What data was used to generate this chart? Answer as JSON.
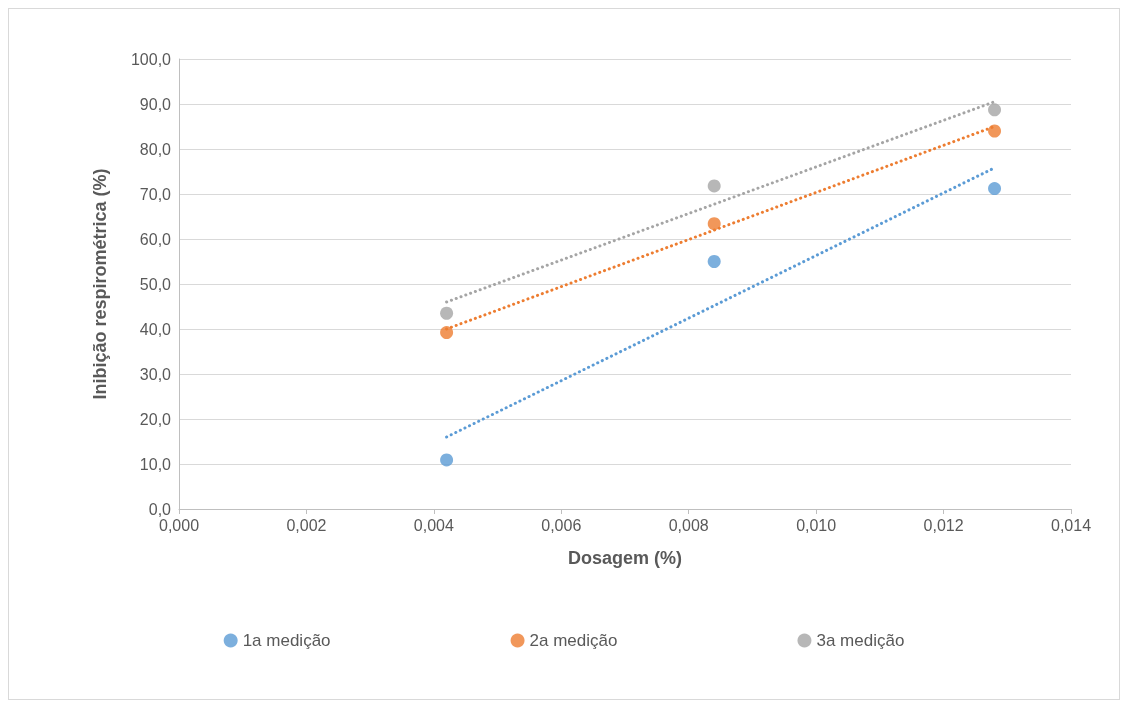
{
  "chart_data": {
    "type": "scatter",
    "xlabel": "Dosagem (%)",
    "ylabel": "Inibição respirométrica (%)",
    "xlim": [
      0,
      0.014
    ],
    "xticks": [
      {
        "value": 0,
        "label": "0,000"
      },
      {
        "value": 0.002,
        "label": "0,002"
      },
      {
        "value": 0.004,
        "label": "0,004"
      },
      {
        "value": 0.006,
        "label": "0,006"
      },
      {
        "value": 0.008,
        "label": "0,008"
      },
      {
        "value": 0.01,
        "label": "0,010"
      },
      {
        "value": 0.012,
        "label": "0,012"
      },
      {
        "value": 0.014,
        "label": "0,014"
      }
    ],
    "ylim": [
      0,
      100
    ],
    "yticks": [
      {
        "value": 0,
        "label": "0,0"
      },
      {
        "value": 10,
        "label": "10,0"
      },
      {
        "value": 20,
        "label": "20,0"
      },
      {
        "value": 30,
        "label": "30,0"
      },
      {
        "value": 40,
        "label": "40,0"
      },
      {
        "value": 50,
        "label": "50,0"
      },
      {
        "value": 60,
        "label": "60,0"
      },
      {
        "value": 70,
        "label": "70,0"
      },
      {
        "value": 80,
        "label": "80,0"
      },
      {
        "value": 90,
        "label": "90,0"
      },
      {
        "value": 100,
        "label": "100,0"
      }
    ],
    "x": [
      0.0042,
      0.0084,
      0.0128
    ],
    "grid": "y",
    "legend": "bottom",
    "marker": "circle",
    "series": [
      {
        "name": "1a medição",
        "color": "#5b9bd5",
        "values": [
          10.9,
          55.0,
          71.2
        ]
      },
      {
        "name": "2a medição",
        "color": "#ed7d31",
        "values": [
          39.2,
          63.4,
          84.0
        ]
      },
      {
        "name": "3a medição",
        "color": "#a5a5a5",
        "values": [
          43.5,
          71.8,
          88.7
        ]
      },
      {
        "type": "line",
        "color": "#5b9bd5",
        "values": [
          16.0,
          null,
          75.8
        ],
        "line_style": "dotted",
        "marker": "none"
      },
      {
        "type": "line",
        "color": "#ed7d31",
        "values": [
          40.0,
          null,
          85.0
        ],
        "line_style": "dotted",
        "marker": "none"
      },
      {
        "type": "line",
        "color": "#a5a5a5",
        "values": [
          46.0,
          null,
          90.5
        ],
        "line_style": "dotted",
        "marker": "none"
      }
    ]
  }
}
